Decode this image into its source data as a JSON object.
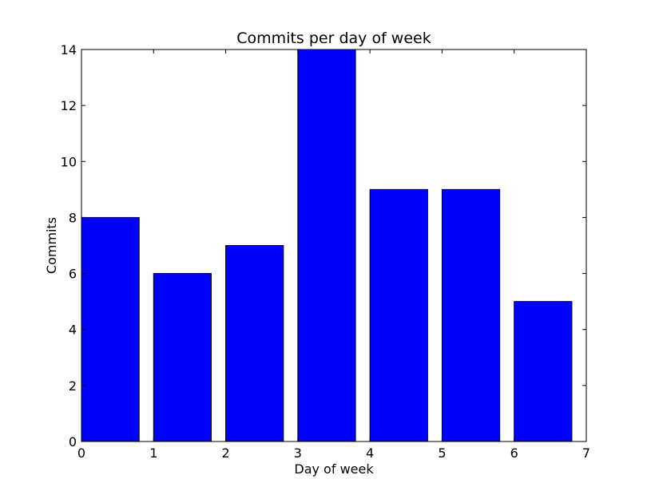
{
  "chart_data": {
    "type": "bar",
    "title": "Commits per day of week",
    "xlabel": "Day of week",
    "ylabel": "Commits",
    "x": [
      0,
      1,
      2,
      3,
      4,
      5,
      6
    ],
    "values": [
      8,
      6,
      7,
      14,
      9,
      9,
      5
    ],
    "bar_width": 0.8,
    "bar_align": "edge",
    "xlim": [
      0,
      7
    ],
    "ylim": [
      0,
      14
    ],
    "xticks": [
      0,
      1,
      2,
      3,
      4,
      5,
      6,
      7
    ],
    "yticks": [
      0,
      2,
      4,
      6,
      8,
      10,
      12,
      14
    ],
    "grid": false,
    "legend": false,
    "bar_color": "#0000ff",
    "edge_color": "#000000"
  }
}
